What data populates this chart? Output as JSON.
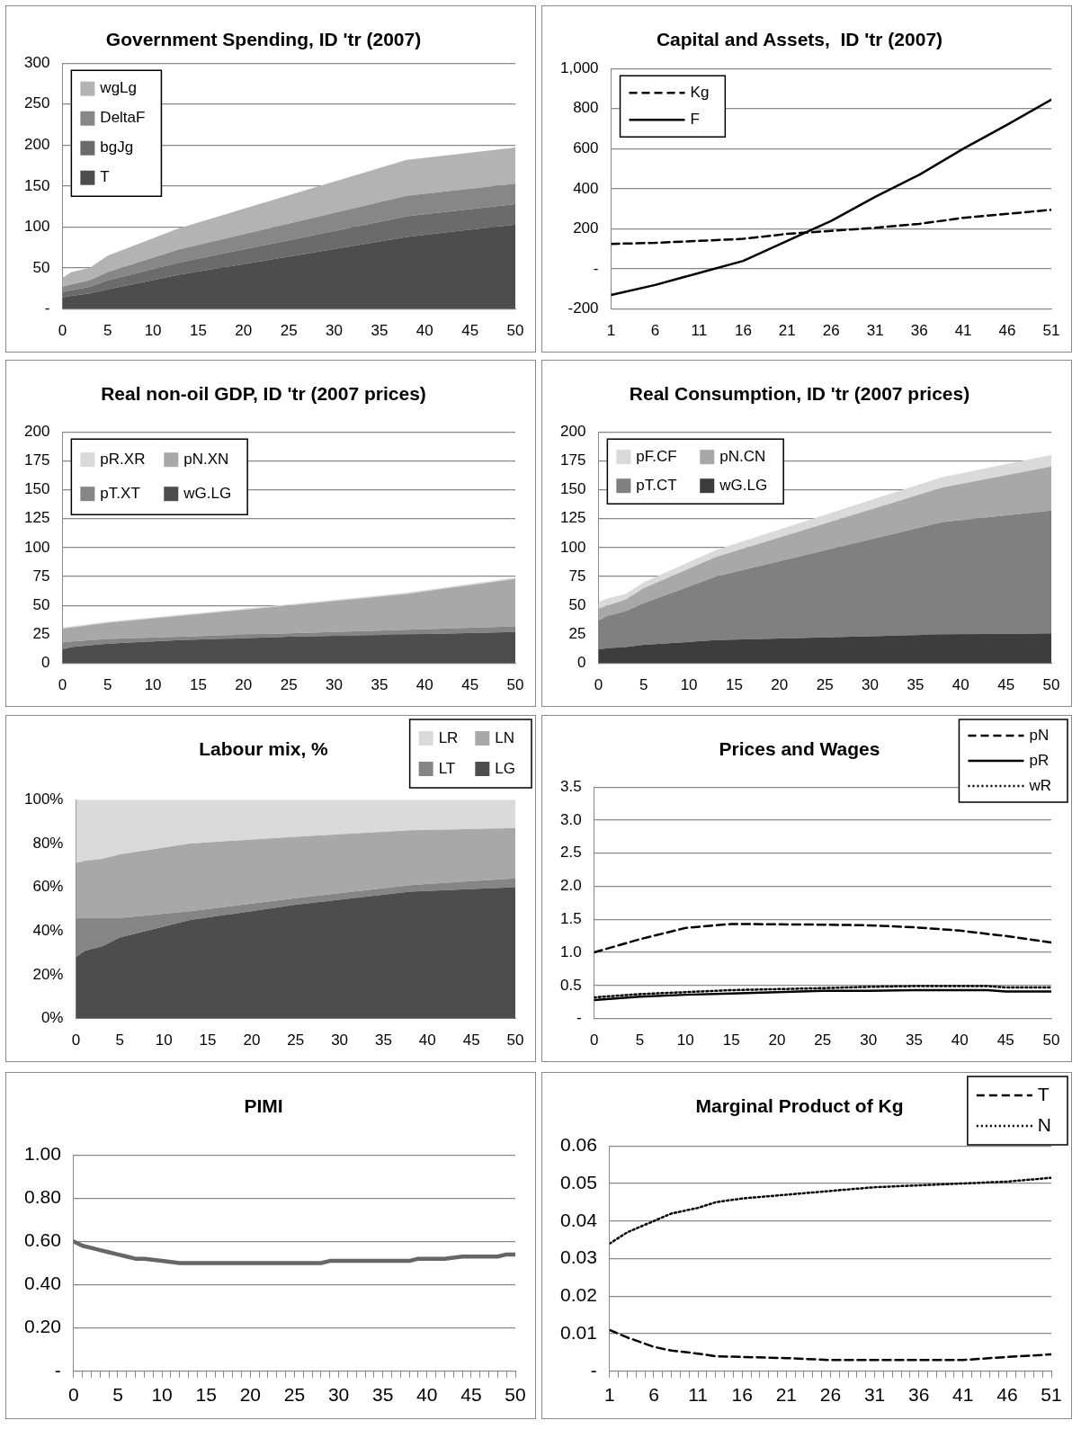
{
  "chart_data": [
    {
      "type": "area",
      "title": "Government Spending, ID 'tr (2007)",
      "stacked": true,
      "x": [
        0,
        1,
        3,
        5,
        13,
        38,
        50
      ],
      "xlim": [
        0,
        50
      ],
      "xticks": [
        0,
        5,
        10,
        15,
        20,
        25,
        30,
        35,
        40,
        45,
        50
      ],
      "ylim": [
        0,
        300
      ],
      "yticks": [
        {
          "value": 0,
          "label": "-"
        },
        50,
        100,
        150,
        200,
        250,
        300
      ],
      "grid": "y",
      "legend": "top left",
      "series": [
        {
          "name": "T",
          "color": "#4d4d4d",
          "values": [
            14,
            16,
            19,
            24,
            42,
            88,
            103
          ]
        },
        {
          "name": "bgJg",
          "color": "#6b6b6b",
          "values": [
            7,
            7,
            8,
            11,
            15,
            25,
            25
          ]
        },
        {
          "name": "DeltaF",
          "color": "#878787",
          "values": [
            6,
            7,
            8,
            10,
            16,
            25,
            25
          ]
        },
        {
          "name": "wgLg",
          "color": "#b3b3b3",
          "values": [
            11,
            15,
            15,
            20,
            26,
            44,
            44
          ]
        }
      ]
    },
    {
      "type": "line",
      "title": "Capital and Assets,  ID 'tr (2007)",
      "x": [
        1,
        6,
        11,
        16,
        21,
        26,
        31,
        36,
        41,
        46,
        51
      ],
      "xlim": [
        1,
        51
      ],
      "xticks": [
        1,
        6,
        11,
        16,
        21,
        26,
        31,
        36,
        41,
        46,
        51
      ],
      "ylim": [
        -200,
        1000
      ],
      "yticks": [
        -200,
        {
          "value": 0,
          "label": "-"
        },
        200,
        400,
        600,
        800,
        {
          "value": 1000,
          "label": "1,000"
        }
      ],
      "grid": "y",
      "legend": "top left",
      "marker": "none",
      "series": [
        {
          "name": "Kg",
          "color": "#000000",
          "line_style": "dashed",
          "values": [
            125,
            130,
            140,
            150,
            175,
            190,
            205,
            225,
            255,
            275,
            295
          ]
        },
        {
          "name": "F",
          "color": "#000000",
          "line_style": "solid",
          "values": [
            -130,
            -80,
            -20,
            40,
            140,
            240,
            360,
            470,
            600,
            720,
            845
          ]
        }
      ]
    },
    {
      "type": "area",
      "title": "Real non-oil GDP, ID 'tr (2007 prices)",
      "stacked": true,
      "x": [
        0,
        1,
        5,
        13,
        25,
        38,
        50
      ],
      "xlim": [
        0,
        50
      ],
      "xticks": [
        0,
        5,
        10,
        15,
        20,
        25,
        30,
        35,
        40,
        45,
        50
      ],
      "ylim": [
        0,
        200
      ],
      "yticks": [
        0,
        25,
        50,
        75,
        100,
        125,
        150,
        175,
        200
      ],
      "grid": "y",
      "legend": "top left",
      "series": [
        {
          "name": "wG.LG",
          "color": "#4d4d4d",
          "values": [
            12,
            14,
            17,
            20,
            23,
            25,
            27
          ]
        },
        {
          "name": "pT.XT",
          "color": "#858585",
          "values": [
            6,
            5,
            4,
            3,
            3,
            4,
            5
          ]
        },
        {
          "name": "pN.XN",
          "color": "#a8a8a8",
          "values": [
            12,
            12,
            14,
            18,
            24,
            31,
            41
          ]
        },
        {
          "name": "pR.XR",
          "color": "#dadada",
          "values": [
            1,
            1,
            1,
            1,
            1,
            1,
            1
          ]
        }
      ]
    },
    {
      "type": "area",
      "title": "Real Consumption, ID 'tr (2007 prices)",
      "stacked": true,
      "x": [
        0,
        1,
        3,
        5,
        13,
        38,
        50
      ],
      "xlim": [
        0,
        50
      ],
      "xticks": [
        0,
        5,
        10,
        15,
        20,
        25,
        30,
        35,
        40,
        45,
        50
      ],
      "ylim": [
        0,
        200
      ],
      "yticks": [
        0,
        25,
        50,
        75,
        100,
        125,
        150,
        175,
        200
      ],
      "grid": "y",
      "legend": "top left",
      "series": [
        {
          "name": "wG.LG",
          "color": "#3d3d3d",
          "values": [
            12,
            13,
            14,
            16,
            20,
            25,
            26
          ]
        },
        {
          "name": "pT.CT",
          "color": "#808080",
          "values": [
            25,
            28,
            31,
            36,
            55,
            97,
            106
          ]
        },
        {
          "name": "pN.CN",
          "color": "#a8a8a8",
          "values": [
            10,
            9,
            10,
            13,
            17,
            30,
            38
          ]
        },
        {
          "name": "pF.CF",
          "color": "#dadada",
          "values": [
            6,
            6,
            5,
            5,
            6,
            9,
            10
          ]
        }
      ]
    },
    {
      "type": "area",
      "title": "Labour mix, %",
      "stacked": true,
      "x": [
        0,
        1,
        3,
        5,
        13,
        25,
        38,
        50
      ],
      "xlim": [
        0,
        50
      ],
      "xticks": [
        0,
        5,
        10,
        15,
        20,
        25,
        30,
        35,
        40,
        45,
        50
      ],
      "ylim": [
        0,
        100
      ],
      "yticks": [
        {
          "value": 0,
          "label": "0%"
        },
        {
          "value": 20,
          "label": "20%"
        },
        {
          "value": 40,
          "label": "40%"
        },
        {
          "value": 60,
          "label": "60%"
        },
        {
          "value": 80,
          "label": "80%"
        },
        {
          "value": 100,
          "label": "100%"
        }
      ],
      "legend": "top right",
      "series": [
        {
          "name": "LG",
          "color": "#4d4d4d",
          "values": [
            28,
            31,
            33,
            37,
            45,
            52,
            58,
            60
          ]
        },
        {
          "name": "LT",
          "color": "#858585",
          "values": [
            18,
            15,
            13,
            9,
            4,
            3,
            3,
            4
          ]
        },
        {
          "name": "LN",
          "color": "#a8a8a8",
          "values": [
            25,
            26,
            27,
            29,
            31,
            28,
            25,
            23
          ]
        },
        {
          "name": "LR",
          "color": "#dadada",
          "values": [
            29,
            28,
            27,
            25,
            20,
            17,
            14,
            13
          ]
        }
      ]
    },
    {
      "type": "line",
      "title": "Prices and Wages",
      "x": [
        0,
        5,
        10,
        15,
        25,
        30,
        35,
        40,
        43,
        45,
        50
      ],
      "xlim": [
        0,
        50
      ],
      "xticks": [
        0,
        5,
        10,
        15,
        20,
        25,
        30,
        35,
        40,
        45,
        50
      ],
      "ylim": [
        0,
        3.5
      ],
      "yticks": [
        {
          "value": 0,
          "label": "-"
        },
        0.5,
        {
          "value": 1,
          "label": "1.0"
        },
        1.5,
        {
          "value": 2,
          "label": "2.0"
        },
        2.5,
        {
          "value": 3,
          "label": "3.0"
        },
        3.5
      ],
      "grid": "y",
      "legend": "top right",
      "marker": "none",
      "series": [
        {
          "name": "pN",
          "color": "#000000",
          "line_style": "dashed",
          "values": [
            1.0,
            1.2,
            1.37,
            1.43,
            1.42,
            1.41,
            1.38,
            1.33,
            1.28,
            1.25,
            1.15
          ]
        },
        {
          "name": "pR",
          "color": "#000000",
          "line_style": "solid",
          "values": [
            0.28,
            0.33,
            0.36,
            0.38,
            0.42,
            0.42,
            0.43,
            0.43,
            0.43,
            0.41,
            0.41
          ]
        },
        {
          "name": "wR",
          "color": "#000000",
          "line_style": "dotted",
          "values": [
            0.32,
            0.37,
            0.4,
            0.43,
            0.46,
            0.48,
            0.49,
            0.49,
            0.49,
            0.47,
            0.47
          ]
        }
      ]
    },
    {
      "type": "line",
      "title": "PIMI",
      "x": [
        0,
        1,
        2,
        3,
        4,
        5,
        6,
        7,
        8,
        10,
        12,
        14,
        20,
        28,
        29,
        38,
        39,
        42,
        44,
        45,
        48,
        49,
        50
      ],
      "xlim": [
        0,
        50
      ],
      "xticks": [
        0,
        {
          "value": 1,
          "label": null
        },
        {
          "value": 2,
          "label": null
        },
        {
          "value": 3,
          "label": null
        },
        {
          "value": 4,
          "label": null
        },
        5,
        {
          "value": 6,
          "label": null
        },
        {
          "value": 7,
          "label": null
        },
        {
          "value": 8,
          "label": null
        },
        {
          "value": 9,
          "label": null
        },
        10,
        {
          "value": 11,
          "label": null
        },
        {
          "value": 12,
          "label": null
        },
        {
          "value": 13,
          "label": null
        },
        {
          "value": 14,
          "label": null
        },
        15,
        {
          "value": 16,
          "label": null
        },
        {
          "value": 17,
          "label": null
        },
        {
          "value": 18,
          "label": null
        },
        {
          "value": 19,
          "label": null
        },
        20,
        {
          "value": 21,
          "label": null
        },
        {
          "value": 22,
          "label": null
        },
        {
          "value": 23,
          "label": null
        },
        {
          "value": 24,
          "label": null
        },
        25,
        {
          "value": 26,
          "label": null
        },
        {
          "value": 27,
          "label": null
        },
        {
          "value": 28,
          "label": null
        },
        {
          "value": 29,
          "label": null
        },
        30,
        {
          "value": 31,
          "label": null
        },
        {
          "value": 32,
          "label": null
        },
        {
          "value": 33,
          "label": null
        },
        {
          "value": 34,
          "label": null
        },
        35,
        {
          "value": 36,
          "label": null
        },
        {
          "value": 37,
          "label": null
        },
        {
          "value": 38,
          "label": null
        },
        {
          "value": 39,
          "label": null
        },
        40,
        {
          "value": 41,
          "label": null
        },
        {
          "value": 42,
          "label": null
        },
        {
          "value": 43,
          "label": null
        },
        {
          "value": 44,
          "label": null
        },
        45,
        {
          "value": 46,
          "label": null
        },
        {
          "value": 47,
          "label": null
        },
        {
          "value": 48,
          "label": null
        },
        {
          "value": 49,
          "label": null
        },
        50
      ],
      "ylim": [
        0,
        1
      ],
      "yticks": [
        {
          "value": 0,
          "label": "-"
        },
        {
          "value": 0.2,
          "label": "0.20"
        },
        {
          "value": 0.4,
          "label": "0.40"
        },
        {
          "value": 0.6,
          "label": "0.60"
        },
        {
          "value": 0.8,
          "label": "0.80"
        },
        {
          "value": 1,
          "label": "1.00"
        }
      ],
      "grid": "y",
      "marker": "none",
      "series": [
        {
          "color": "#666666",
          "line_style": "solid",
          "values": [
            0.6,
            0.58,
            0.57,
            0.56,
            0.55,
            0.54,
            0.53,
            0.52,
            0.52,
            0.51,
            0.5,
            0.5,
            0.5,
            0.5,
            0.51,
            0.51,
            0.52,
            0.52,
            0.53,
            0.53,
            0.53,
            0.54,
            0.54
          ]
        }
      ]
    },
    {
      "type": "line",
      "title": "Marginal Product of Kg",
      "x": [
        1,
        3,
        6,
        8,
        11,
        13,
        16,
        21,
        26,
        31,
        36,
        41,
        46,
        51
      ],
      "xlim": [
        1,
        51
      ],
      "xticks": [
        1,
        {
          "value": 2,
          "label": null
        },
        {
          "value": 3,
          "label": null
        },
        {
          "value": 4,
          "label": null
        },
        {
          "value": 5,
          "label": null
        },
        6,
        {
          "value": 7,
          "label": null
        },
        {
          "value": 8,
          "label": null
        },
        {
          "value": 9,
          "label": null
        },
        {
          "value": 10,
          "label": null
        },
        11,
        {
          "value": 12,
          "label": null
        },
        {
          "value": 13,
          "label": null
        },
        {
          "value": 14,
          "label": null
        },
        {
          "value": 15,
          "label": null
        },
        16,
        {
          "value": 17,
          "label": null
        },
        {
          "value": 18,
          "label": null
        },
        {
          "value": 19,
          "label": null
        },
        {
          "value": 20,
          "label": null
        },
        21,
        {
          "value": 22,
          "label": null
        },
        {
          "value": 23,
          "label": null
        },
        {
          "value": 24,
          "label": null
        },
        {
          "value": 25,
          "label": null
        },
        26,
        {
          "value": 27,
          "label": null
        },
        {
          "value": 28,
          "label": null
        },
        {
          "value": 29,
          "label": null
        },
        {
          "value": 30,
          "label": null
        },
        31,
        {
          "value": 32,
          "label": null
        },
        {
          "value": 33,
          "label": null
        },
        {
          "value": 34,
          "label": null
        },
        {
          "value": 35,
          "label": null
        },
        36,
        {
          "value": 37,
          "label": null
        },
        {
          "value": 38,
          "label": null
        },
        {
          "value": 39,
          "label": null
        },
        {
          "value": 40,
          "label": null
        },
        41,
        {
          "value": 42,
          "label": null
        },
        {
          "value": 43,
          "label": null
        },
        {
          "value": 44,
          "label": null
        },
        {
          "value": 45,
          "label": null
        },
        46,
        {
          "value": 47,
          "label": null
        },
        {
          "value": 48,
          "label": null
        },
        {
          "value": 49,
          "label": null
        },
        {
          "value": 50,
          "label": null
        },
        51
      ],
      "ylim": [
        0,
        0.06
      ],
      "yticks": [
        {
          "value": 0,
          "label": "-"
        },
        0.01,
        0.02,
        0.03,
        0.04,
        0.05,
        0.06
      ],
      "grid": "y",
      "legend": "top right",
      "marker": "none",
      "series": [
        {
          "name": "T",
          "color": "#000000",
          "line_style": "dashed",
          "values": [
            0.011,
            0.009,
            0.0065,
            0.0055,
            0.0047,
            0.004,
            0.0038,
            0.0035,
            0.003,
            0.003,
            0.003,
            0.003,
            0.0038,
            0.0045
          ]
        },
        {
          "name": "N",
          "color": "#000000",
          "line_style": "dotted",
          "values": [
            0.034,
            0.037,
            0.04,
            0.042,
            0.0435,
            0.045,
            0.046,
            0.047,
            0.048,
            0.049,
            0.0495,
            0.05,
            0.0505,
            0.0515
          ]
        }
      ]
    }
  ]
}
